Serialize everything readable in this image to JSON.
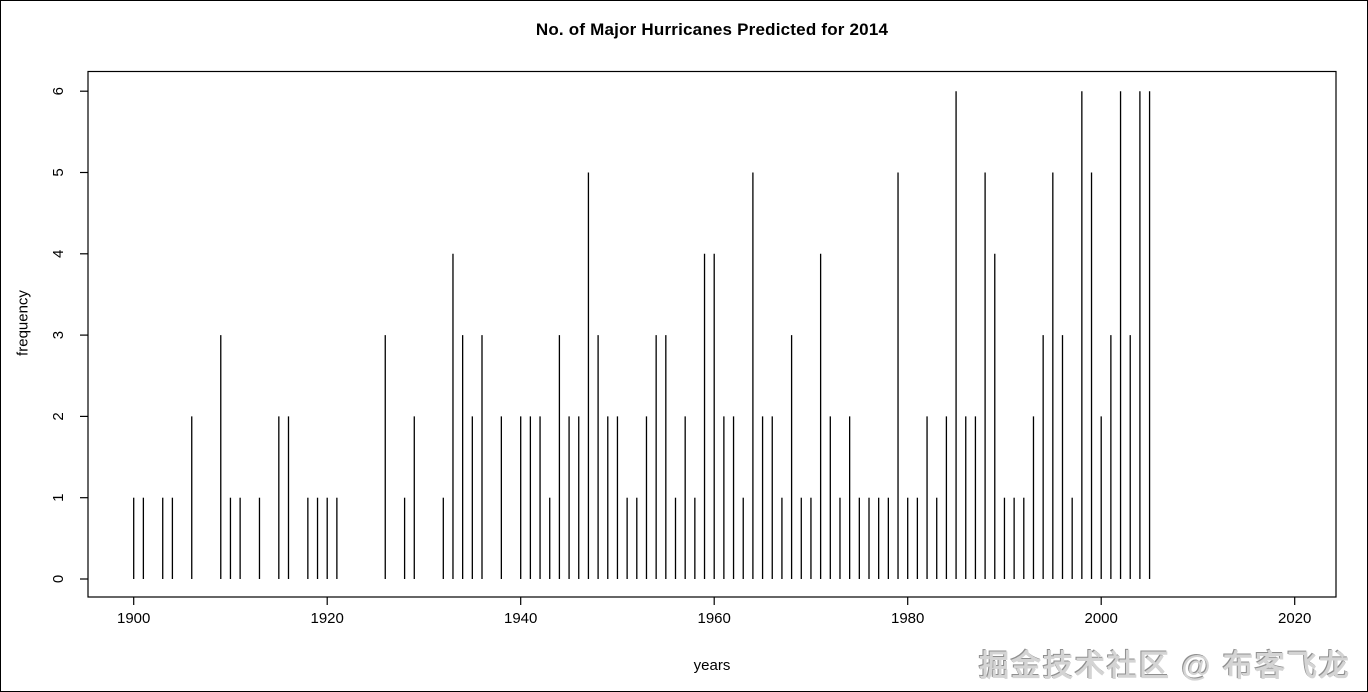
{
  "title": "No. of Major Hurricanes Predicted for 2014",
  "watermark": "掘金技术社区 @ 布客飞龙",
  "chart_data": {
    "type": "bar",
    "subtype": "R-type-h-spike-plot",
    "title": "No. of Major Hurricanes Predicted for 2014",
    "xlabel": "years",
    "ylabel": "frequency",
    "x_ticks": [
      1900,
      1920,
      1940,
      1960,
      1980,
      2000,
      2020
    ],
    "y_ticks": [
      0,
      1,
      2,
      3,
      4,
      5,
      6
    ],
    "xlim": [
      1895,
      2024
    ],
    "ylim": [
      -0.22,
      6.24
    ],
    "grid": false,
    "legend": null,
    "bar_color": "#000000",
    "x": [
      1900,
      1901,
      1902,
      1903,
      1904,
      1905,
      1906,
      1907,
      1908,
      1909,
      1910,
      1911,
      1912,
      1913,
      1914,
      1915,
      1916,
      1917,
      1918,
      1919,
      1920,
      1921,
      1922,
      1923,
      1924,
      1925,
      1926,
      1927,
      1928,
      1929,
      1930,
      1931,
      1932,
      1933,
      1934,
      1935,
      1936,
      1937,
      1938,
      1939,
      1940,
      1941,
      1942,
      1943,
      1944,
      1945,
      1946,
      1947,
      1948,
      1949,
      1950,
      1951,
      1952,
      1953,
      1954,
      1955,
      1956,
      1957,
      1958,
      1959,
      1960,
      1961,
      1962,
      1963,
      1964,
      1965,
      1966,
      1967,
      1968,
      1969,
      1970,
      1971,
      1972,
      1973,
      1974,
      1975,
      1976,
      1977,
      1978,
      1979,
      1980,
      1981,
      1982,
      1983,
      1984,
      1985,
      1986,
      1987,
      1988,
      1989,
      1990,
      1991,
      1992,
      1993,
      1994,
      1995,
      1996,
      1997,
      1998,
      1999,
      2000,
      2001,
      2002,
      2003,
      2004,
      2005
    ],
    "values": [
      1,
      1,
      0,
      1,
      1,
      0,
      2,
      0,
      0,
      3,
      1,
      1,
      0,
      1,
      0,
      2,
      2,
      0,
      1,
      1,
      1,
      1,
      0,
      0,
      0,
      0,
      3,
      0,
      1,
      2,
      0,
      0,
      1,
      4,
      3,
      2,
      3,
      0,
      2,
      0,
      2,
      2,
      2,
      1,
      3,
      2,
      2,
      5,
      3,
      2,
      2,
      1,
      1,
      2,
      3,
      3,
      1,
      2,
      1,
      4,
      4,
      2,
      2,
      1,
      5,
      2,
      2,
      1,
      3,
      1,
      1,
      4,
      2,
      1,
      2,
      1,
      1,
      1,
      1,
      5,
      1,
      1,
      2,
      1,
      2,
      6,
      2,
      2,
      5,
      4,
      1,
      1,
      1,
      2,
      3,
      5,
      3,
      1,
      6,
      5,
      2,
      3,
      6,
      3,
      6,
      6
    ]
  }
}
